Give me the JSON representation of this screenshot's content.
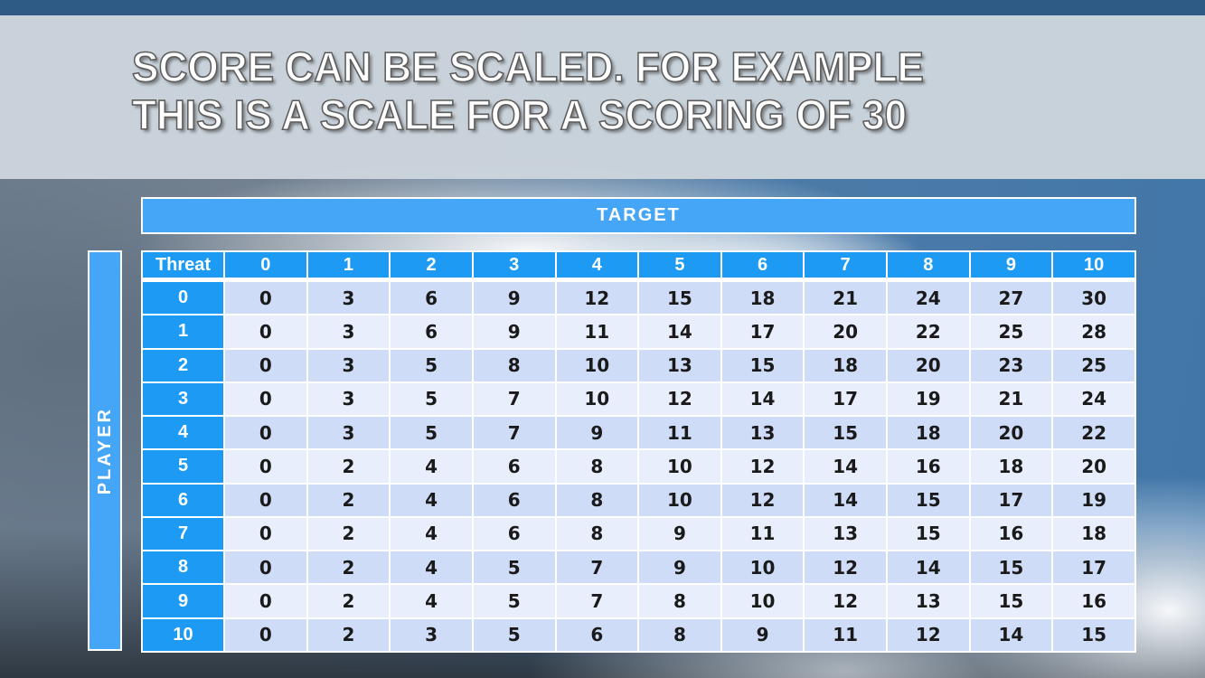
{
  "title": {
    "line1": "SCORE CAN BE SCALED. FOR EXAMPLE",
    "line2": "THIS IS A SCALE FOR A SCORING OF 30"
  },
  "table": {
    "target_label": "TARGET",
    "player_label": "PLAYER",
    "corner_label": "Threat",
    "column_headers": [
      "0",
      "1",
      "2",
      "3",
      "4",
      "5",
      "6",
      "7",
      "8",
      "9",
      "10"
    ],
    "row_headers": [
      "0",
      "1",
      "2",
      "3",
      "4",
      "5",
      "6",
      "7",
      "8",
      "9",
      "10"
    ],
    "rows": [
      [
        0,
        3,
        6,
        9,
        12,
        15,
        18,
        21,
        24,
        27,
        30
      ],
      [
        0,
        3,
        6,
        9,
        11,
        14,
        17,
        20,
        22,
        25,
        28
      ],
      [
        0,
        3,
        5,
        8,
        10,
        13,
        15,
        18,
        20,
        23,
        25
      ],
      [
        0,
        3,
        5,
        7,
        10,
        12,
        14,
        17,
        19,
        21,
        24
      ],
      [
        0,
        3,
        5,
        7,
        9,
        11,
        13,
        15,
        18,
        20,
        22
      ],
      [
        0,
        2,
        4,
        6,
        8,
        10,
        12,
        14,
        16,
        18,
        20
      ],
      [
        0,
        2,
        4,
        6,
        8,
        10,
        12,
        14,
        15,
        17,
        19
      ],
      [
        0,
        2,
        4,
        6,
        8,
        9,
        11,
        13,
        15,
        16,
        18
      ],
      [
        0,
        2,
        4,
        5,
        7,
        9,
        10,
        12,
        14,
        15,
        17
      ],
      [
        0,
        2,
        4,
        5,
        7,
        8,
        10,
        12,
        13,
        15,
        16
      ],
      [
        0,
        2,
        3,
        5,
        6,
        8,
        9,
        11,
        12,
        14,
        15
      ]
    ]
  },
  "colors": {
    "header_blue": "#1d9bf4",
    "banner_blue": "#45a6f8",
    "row_even": "#cfdcf7",
    "row_odd": "#e8eefc",
    "cell_text": "#1a1a1a",
    "title_band": "#cdd5dd"
  }
}
